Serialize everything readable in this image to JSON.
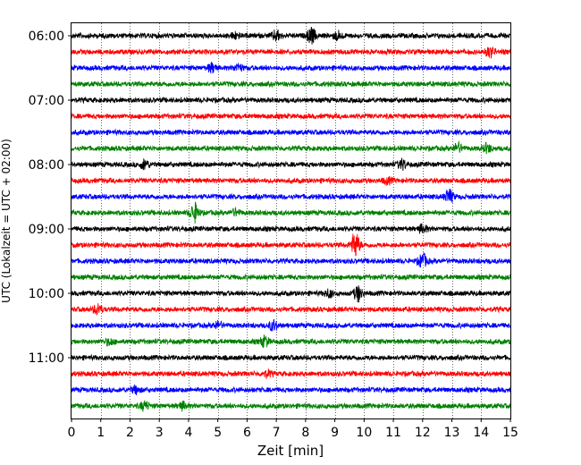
{
  "chart_data": {
    "type": "line",
    "title": "",
    "xlabel": "Zeit  [min]",
    "ylabel": "UTC (Lokalzeit = UTC + 02:00)",
    "xlim": [
      0,
      15
    ],
    "xticks": [
      0,
      1,
      2,
      3,
      4,
      5,
      6,
      7,
      8,
      9,
      10,
      11,
      12,
      13,
      14,
      15
    ],
    "ytick_labels": [
      "06:00",
      "07:00",
      "08:00",
      "09:00",
      "10:00",
      "11:00"
    ],
    "grid": "vertical-dotted",
    "trace_interval_min": 15,
    "start_time": "06:00",
    "trace_count": 24,
    "color_cycle": [
      "#000000",
      "#ff0000",
      "#0000ff",
      "#008000"
    ],
    "events": [
      {
        "trace": 0,
        "minute": 7.0,
        "amp": 0.6
      },
      {
        "trace": 0,
        "minute": 8.2,
        "amp": 0.9
      },
      {
        "trace": 0,
        "minute": 9.1,
        "amp": 0.5
      },
      {
        "trace": 0,
        "minute": 5.6,
        "amp": 0.35
      },
      {
        "trace": 1,
        "minute": 14.3,
        "amp": 0.6
      },
      {
        "trace": 2,
        "minute": 4.8,
        "amp": 0.5
      },
      {
        "trace": 2,
        "minute": 5.7,
        "amp": 0.4
      },
      {
        "trace": 7,
        "minute": 13.2,
        "amp": 0.55
      },
      {
        "trace": 7,
        "minute": 14.2,
        "amp": 0.5
      },
      {
        "trace": 8,
        "minute": 2.5,
        "amp": 0.55
      },
      {
        "trace": 8,
        "minute": 11.3,
        "amp": 0.55
      },
      {
        "trace": 9,
        "minute": 10.8,
        "amp": 0.35
      },
      {
        "trace": 10,
        "minute": 12.9,
        "amp": 0.8
      },
      {
        "trace": 11,
        "minute": 4.2,
        "amp": 1.1
      },
      {
        "trace": 11,
        "minute": 5.6,
        "amp": 0.35
      },
      {
        "trace": 12,
        "minute": 12.0,
        "amp": 0.45
      },
      {
        "trace": 13,
        "minute": 9.7,
        "amp": 1.5
      },
      {
        "trace": 14,
        "minute": 12.0,
        "amp": 0.8
      },
      {
        "trace": 16,
        "minute": 9.8,
        "amp": 0.9
      },
      {
        "trace": 16,
        "minute": 8.8,
        "amp": 0.4
      },
      {
        "trace": 17,
        "minute": 0.9,
        "amp": 0.6
      },
      {
        "trace": 18,
        "minute": 6.9,
        "amp": 0.6
      },
      {
        "trace": 18,
        "minute": 5.0,
        "amp": 0.4
      },
      {
        "trace": 19,
        "minute": 6.6,
        "amp": 0.6
      },
      {
        "trace": 19,
        "minute": 1.3,
        "amp": 0.35
      },
      {
        "trace": 21,
        "minute": 6.7,
        "amp": 0.35
      },
      {
        "trace": 22,
        "minute": 2.2,
        "amp": 0.4
      },
      {
        "trace": 23,
        "minute": 2.5,
        "amp": 0.5
      },
      {
        "trace": 23,
        "minute": 3.8,
        "amp": 0.4
      }
    ]
  }
}
